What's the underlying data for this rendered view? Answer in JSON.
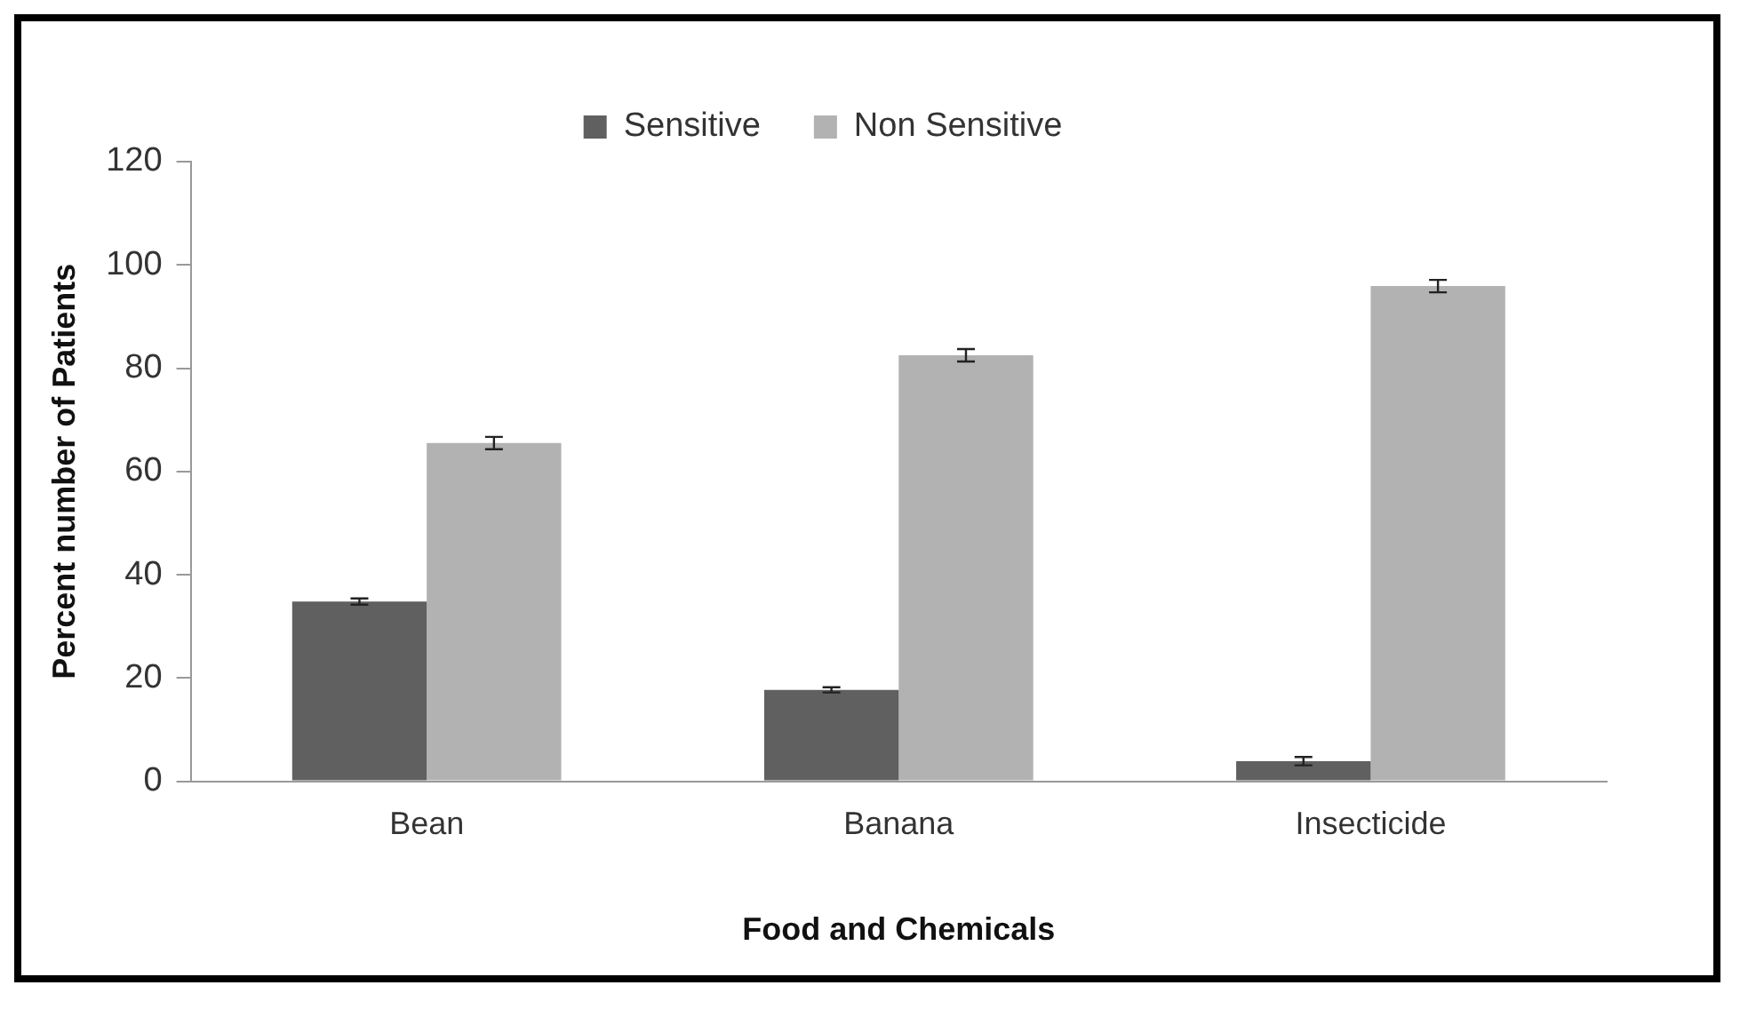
{
  "chart_data": {
    "type": "bar",
    "xlabel": "Food and Chemicals",
    "ylabel": "Percent number of Patients",
    "categories": [
      "Bean",
      "Banana",
      "Insecticide"
    ],
    "series": [
      {
        "name": "Sensitive",
        "color": "#606060",
        "values": [
          34.8,
          17.7,
          3.9
        ],
        "errors": [
          0.6,
          0.5,
          0.8
        ]
      },
      {
        "name": "Non Sensitive",
        "color": "#b2b2b2",
        "values": [
          65.5,
          82.5,
          95.9
        ],
        "errors": [
          1.2,
          1.2,
          1.2
        ]
      }
    ],
    "ylim": [
      0,
      120
    ],
    "yticks": [
      0,
      20,
      40,
      60,
      80,
      100,
      120
    ],
    "grid": false,
    "legend": "top"
  }
}
